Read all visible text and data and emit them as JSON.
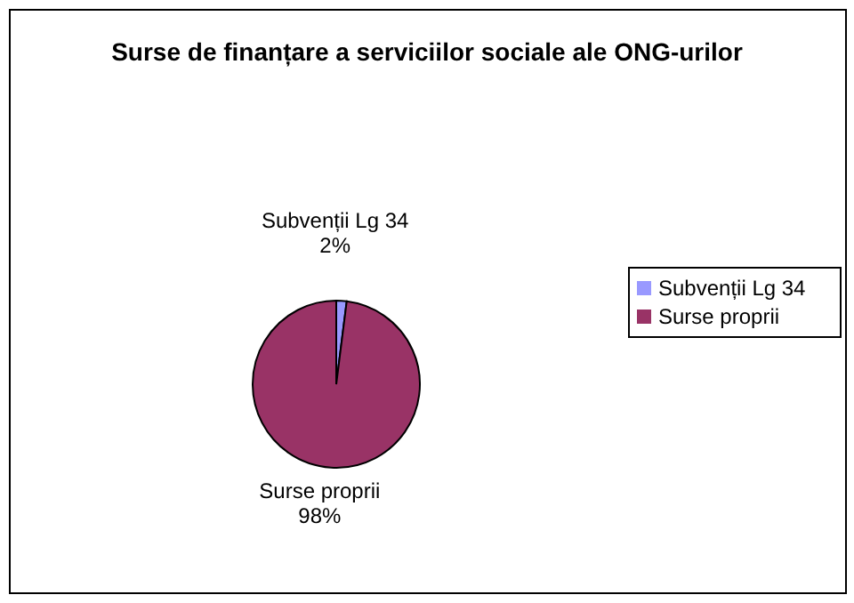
{
  "chart_data": {
    "type": "pie",
    "title": "Surse de finanțare a serviciilor sociale ale ONG-urilor",
    "categories": [
      "Subvenții Lg 34",
      "Surse proprii"
    ],
    "values": [
      2,
      98
    ],
    "colors": [
      "#9999ff",
      "#993366"
    ],
    "value_labels": [
      "2%",
      "98%"
    ],
    "legend": "right"
  }
}
